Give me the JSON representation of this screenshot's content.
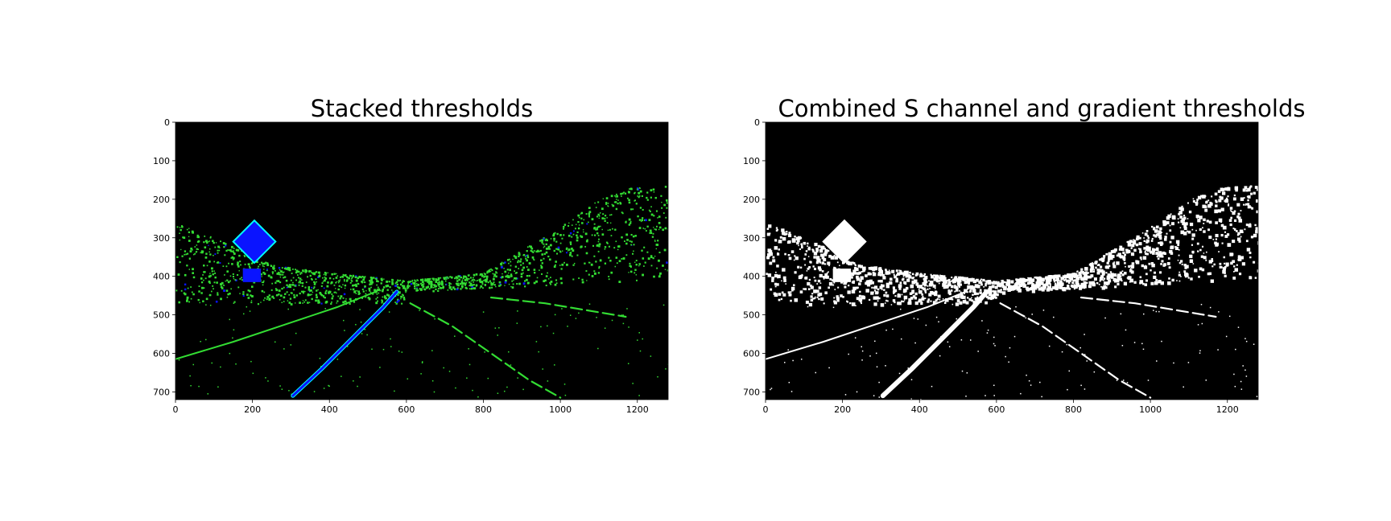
{
  "figure": {
    "background": "#ffffff"
  },
  "chart_data": [
    {
      "type": "image",
      "title": "Stacked thresholds",
      "xlabel": "",
      "ylabel": "",
      "xlim": [
        0,
        1280
      ],
      "ylim": [
        720,
        0
      ],
      "x_ticks": [
        0,
        200,
        400,
        600,
        800,
        1000,
        1200
      ],
      "y_ticks": [
        0,
        100,
        200,
        300,
        400,
        500,
        600,
        700
      ],
      "colors": {
        "background": "#000000",
        "primary": "#33dd33",
        "secondary": "#0a14ff",
        "edge": "#00ffff"
      },
      "lane_lines": [
        {
          "name": "left-lane",
          "style": "primary",
          "points": [
            [
              0,
              615
            ],
            [
              150,
              570
            ],
            [
              300,
              520
            ],
            [
              420,
              480
            ],
            [
              520,
              440
            ]
          ]
        },
        {
          "name": "center-lane",
          "style": "secondary",
          "points": [
            [
              305,
              710
            ],
            [
              380,
              640
            ],
            [
              460,
              560
            ],
            [
              540,
              480
            ],
            [
              575,
              440
            ]
          ]
        },
        {
          "name": "right-dashes-1",
          "style": "primary",
          "points": [
            [
              610,
              470
            ],
            [
              720,
              530
            ],
            [
              820,
              600
            ],
            [
              920,
              670
            ],
            [
              1000,
              715
            ]
          ]
        },
        {
          "name": "right-dashes-2",
          "style": "primary",
          "points": [
            [
              820,
              455
            ],
            [
              960,
              470
            ],
            [
              1080,
              490
            ],
            [
              1170,
              505
            ]
          ]
        }
      ],
      "vegetation_band": [
        [
          0,
          260
        ],
        [
          100,
          300
        ],
        [
          250,
          370
        ],
        [
          400,
          390
        ],
        [
          600,
          410
        ],
        [
          800,
          390
        ],
        [
          900,
          330
        ],
        [
          1000,
          270
        ],
        [
          1100,
          200
        ],
        [
          1180,
          170
        ],
        [
          1280,
          160
        ]
      ],
      "sign": {
        "center": [
          205,
          310
        ],
        "half_size": 55
      },
      "small_sign": {
        "x": [
          175,
          222
        ],
        "y": [
          380,
          415
        ]
      }
    },
    {
      "type": "image",
      "title": "Combined S channel and gradient thresholds",
      "xlabel": "",
      "ylabel": "",
      "xlim": [
        0,
        1280
      ],
      "ylim": [
        720,
        0
      ],
      "x_ticks": [
        0,
        200,
        400,
        600,
        800,
        1000,
        1200
      ],
      "y_ticks": [
        0,
        100,
        200,
        300,
        400,
        500,
        600,
        700
      ],
      "colors": {
        "background": "#000000",
        "primary": "#ffffff",
        "secondary": "#ffffff",
        "edge": "#ffffff"
      },
      "lane_lines": [
        {
          "name": "left-lane",
          "style": "primary",
          "points": [
            [
              0,
              615
            ],
            [
              150,
              570
            ],
            [
              300,
              520
            ],
            [
              420,
              480
            ],
            [
              520,
              440
            ]
          ]
        },
        {
          "name": "center-lane",
          "style": "secondary",
          "points": [
            [
              305,
              710
            ],
            [
              380,
              640
            ],
            [
              460,
              560
            ],
            [
              540,
              480
            ],
            [
              575,
              440
            ]
          ]
        },
        {
          "name": "right-dashes-1",
          "style": "primary",
          "points": [
            [
              610,
              470
            ],
            [
              720,
              530
            ],
            [
              820,
              600
            ],
            [
              920,
              670
            ],
            [
              1000,
              715
            ]
          ]
        },
        {
          "name": "right-dashes-2",
          "style": "primary",
          "points": [
            [
              820,
              455
            ],
            [
              960,
              470
            ],
            [
              1080,
              490
            ],
            [
              1170,
              505
            ]
          ]
        }
      ],
      "vegetation_band": [
        [
          0,
          260
        ],
        [
          100,
          300
        ],
        [
          250,
          370
        ],
        [
          400,
          390
        ],
        [
          600,
          410
        ],
        [
          800,
          390
        ],
        [
          900,
          330
        ],
        [
          1000,
          270
        ],
        [
          1100,
          200
        ],
        [
          1180,
          170
        ],
        [
          1280,
          160
        ]
      ],
      "sign": {
        "center": [
          205,
          310
        ],
        "half_size": 55
      },
      "small_sign": {
        "x": [
          175,
          222
        ],
        "y": [
          380,
          415
        ]
      }
    }
  ]
}
